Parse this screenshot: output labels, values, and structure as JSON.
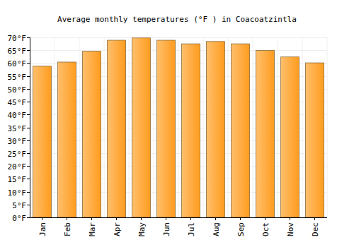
{
  "chart_data": {
    "type": "bar",
    "title": "Average monthly temperatures (°F ) in Coacoatzintla",
    "categories": [
      "Jan",
      "Feb",
      "Mar",
      "Apr",
      "May",
      "Jun",
      "Jul",
      "Aug",
      "Sep",
      "Oct",
      "Nov",
      "Dec"
    ],
    "values": [
      58.8,
      60.4,
      64.6,
      68.9,
      69.8,
      68.9,
      67.5,
      68.4,
      67.5,
      64.9,
      62.4,
      60.1
    ],
    "color": "#ff9c1e",
    "ylim": [
      0,
      70
    ],
    "yticks": [
      {
        "value": 0,
        "label": "0°F"
      },
      {
        "value": 5,
        "label": "5°F"
      },
      {
        "value": 10,
        "label": "10°F"
      },
      {
        "value": 15,
        "label": "15°F"
      },
      {
        "value": 20,
        "label": "20°F"
      },
      {
        "value": 25,
        "label": "25°F"
      },
      {
        "value": 30,
        "label": "30°F"
      },
      {
        "value": 35,
        "label": "35°F"
      },
      {
        "value": 40,
        "label": "40°F"
      },
      {
        "value": 45,
        "label": "45°F"
      },
      {
        "value": 50,
        "label": "50°F"
      },
      {
        "value": 55,
        "label": "55°F"
      },
      {
        "value": 60,
        "label": "60°F"
      },
      {
        "value": 65,
        "label": "65°F"
      },
      {
        "value": 70,
        "label": "70°F"
      }
    ],
    "grid": true
  }
}
